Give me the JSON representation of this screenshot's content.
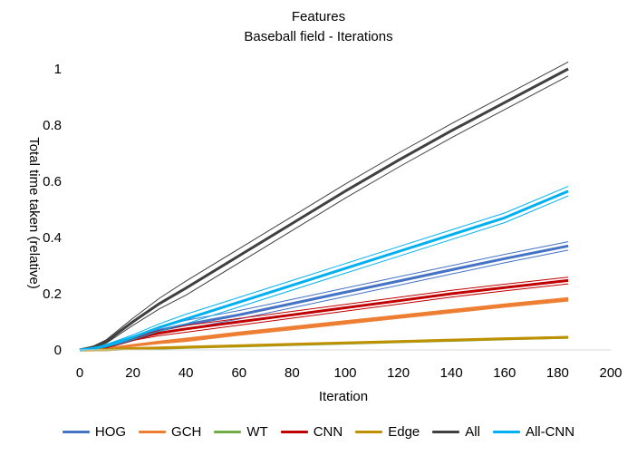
{
  "chart_data": {
    "type": "line",
    "title": "Features",
    "subtitle": "Baseball field - Iterations",
    "xlabel": "Iteration",
    "ylabel": "Total time taken (relative)",
    "xlim": [
      0,
      200
    ],
    "ylim": [
      0,
      1
    ],
    "x_ticks": [
      "0",
      "20",
      "40",
      "60",
      "80",
      "100",
      "120",
      "140",
      "160",
      "180",
      "200"
    ],
    "y_ticks": [
      "0",
      "0.2",
      "0.4",
      "0.6",
      "0.8",
      "1"
    ],
    "grid": false,
    "legend_position": "bottom",
    "x": [
      0,
      5,
      10,
      20,
      30,
      40,
      60,
      80,
      100,
      120,
      140,
      160,
      184
    ],
    "series": [
      {
        "name": "HOG",
        "color": "#4472c4",
        "band": 0.015,
        "values": [
          0,
          0.003,
          0.01,
          0.04,
          0.07,
          0.09,
          0.125,
          0.165,
          0.205,
          0.245,
          0.285,
          0.325,
          0.37
        ]
      },
      {
        "name": "GCH",
        "color": "#ed7d31",
        "band": 0.006,
        "values": [
          0,
          0.001,
          0.004,
          0.016,
          0.027,
          0.036,
          0.058,
          0.078,
          0.098,
          0.118,
          0.138,
          0.158,
          0.18
        ]
      },
      {
        "name": "WT",
        "color": "#70ad47",
        "band": 0.002,
        "values": [
          0,
          0.0005,
          0.001,
          0.004,
          0.006,
          0.009,
          0.014,
          0.019,
          0.024,
          0.029,
          0.034,
          0.039,
          0.045
        ]
      },
      {
        "name": "CNN",
        "color": "#c00000",
        "band": 0.012,
        "values": [
          0,
          0.003,
          0.01,
          0.04,
          0.06,
          0.075,
          0.1,
          0.125,
          0.15,
          0.175,
          0.2,
          0.222,
          0.247
        ]
      },
      {
        "name": "Edge",
        "color": "#bf9000",
        "band": 0.002,
        "values": [
          0,
          0.0005,
          0.001,
          0.005,
          0.007,
          0.01,
          0.015,
          0.02,
          0.025,
          0.03,
          0.035,
          0.04,
          0.045
        ]
      },
      {
        "name": "All",
        "color": "#404040",
        "band": 0.025,
        "values": [
          0,
          0.01,
          0.03,
          0.1,
          0.165,
          0.22,
          0.335,
          0.45,
          0.565,
          0.675,
          0.78,
          0.88,
          1.0
        ]
      },
      {
        "name": "All-CNN",
        "color": "#00b0f0",
        "band": 0.017,
        "values": [
          0,
          0.005,
          0.015,
          0.045,
          0.08,
          0.11,
          0.17,
          0.23,
          0.29,
          0.35,
          0.41,
          0.47,
          0.565
        ]
      }
    ]
  }
}
